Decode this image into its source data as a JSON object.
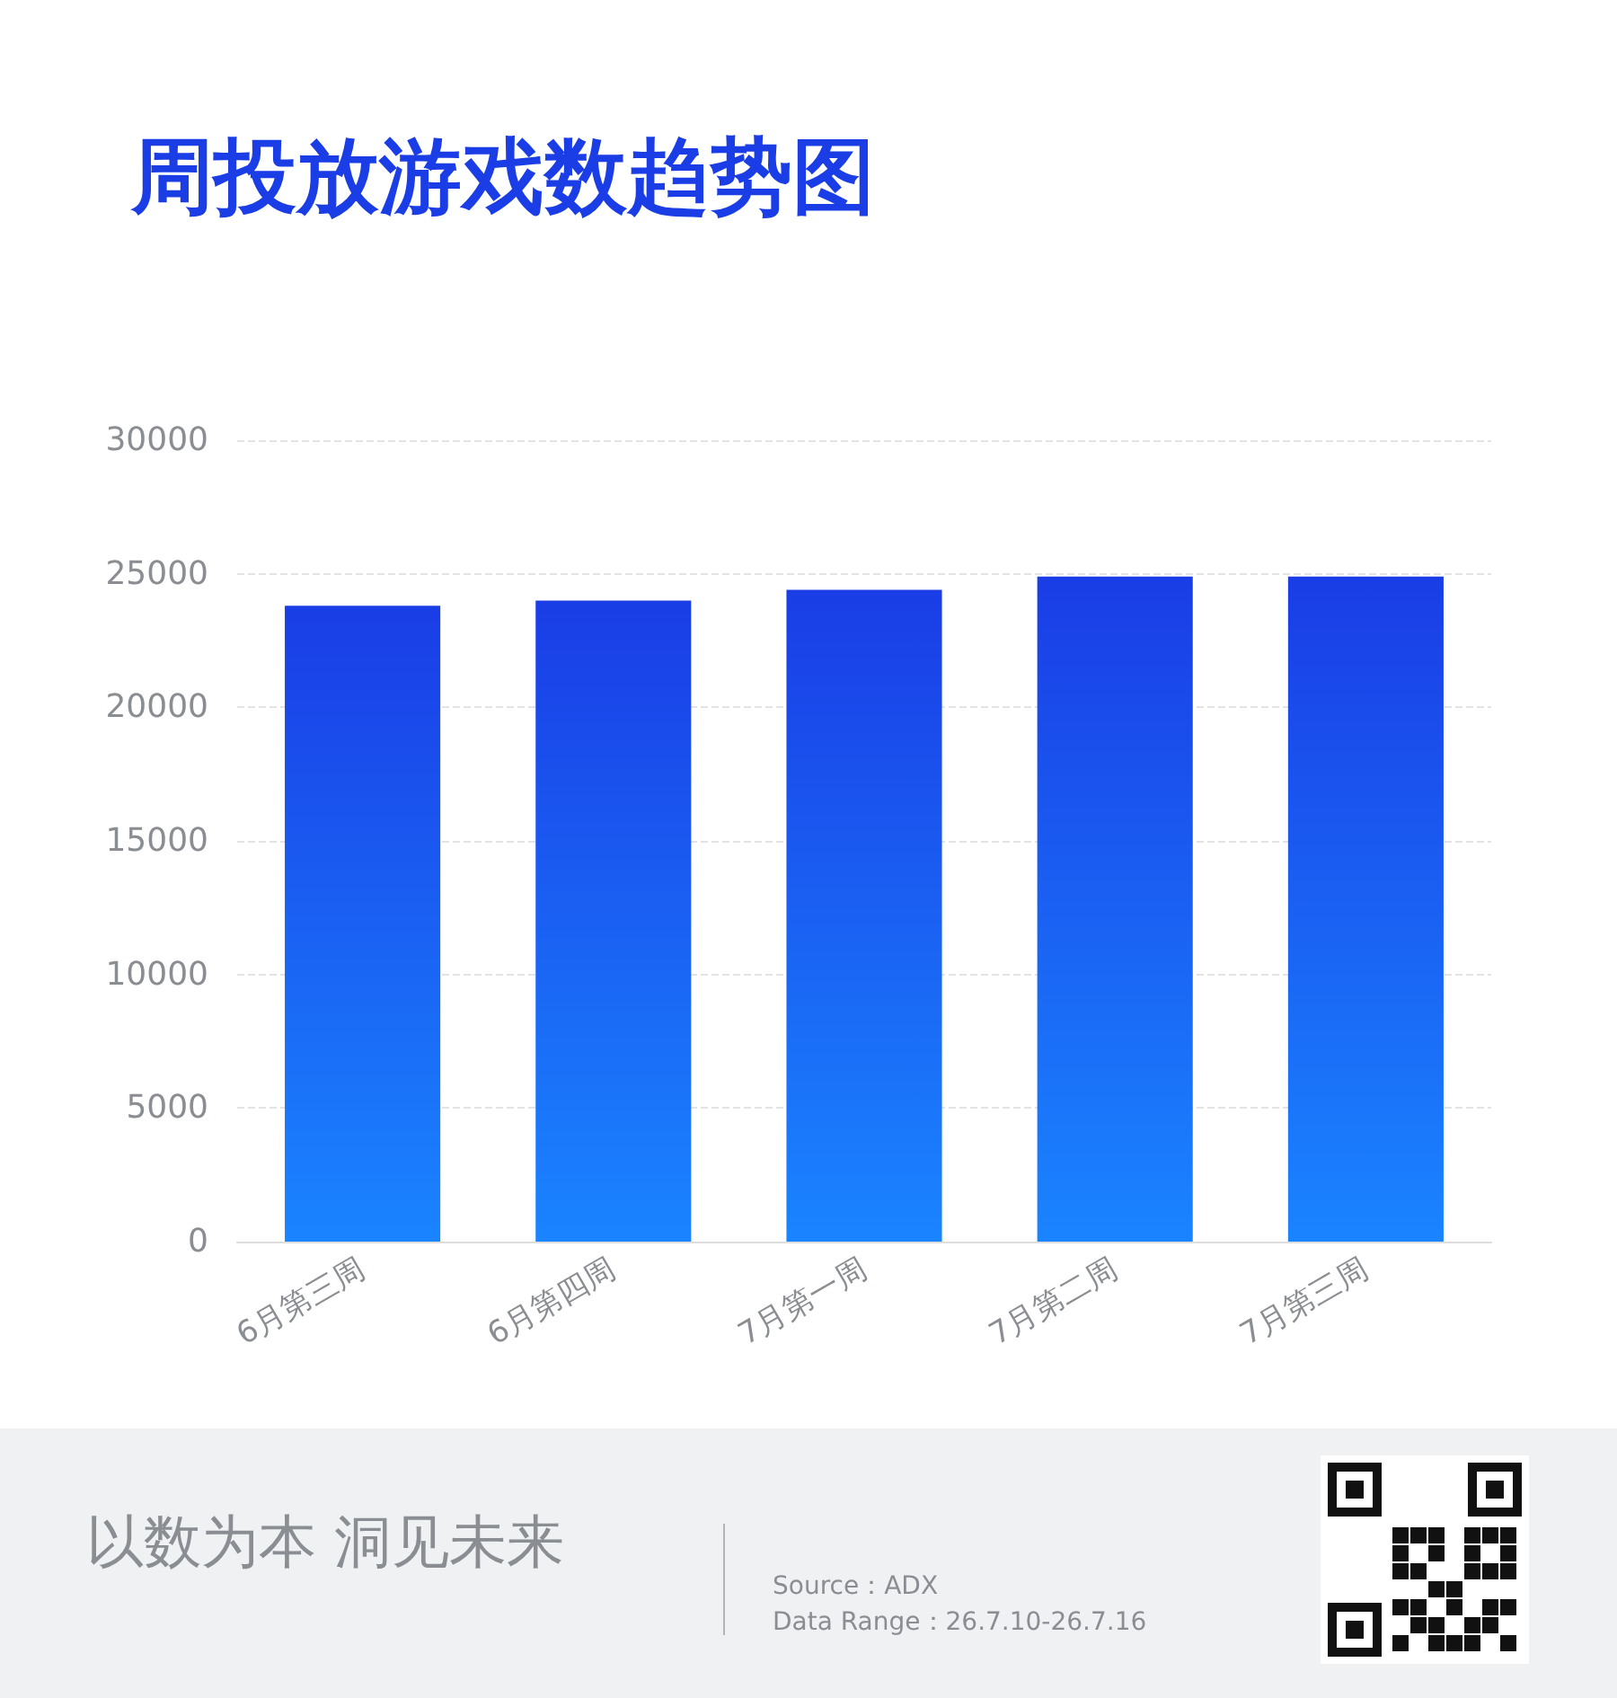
{
  "chart_data": {
    "type": "bar",
    "title": "周投放游戏数趋势图",
    "categories": [
      "6月第三周",
      "6月第四周",
      "7月第一周",
      "7月第二周",
      "7月第三周"
    ],
    "values": [
      23800,
      24000,
      24400,
      24900,
      24900
    ],
    "color": "#1a3de6",
    "ylim": [
      0,
      30000
    ],
    "yticks": [
      0,
      5000,
      10000,
      15000,
      20000,
      25000,
      30000
    ],
    "grid": "y",
    "annotations": [
      "以数为本 洞见未来",
      "Source：ADX",
      "Data Range：26.7.10-26.7.16"
    ]
  }
}
